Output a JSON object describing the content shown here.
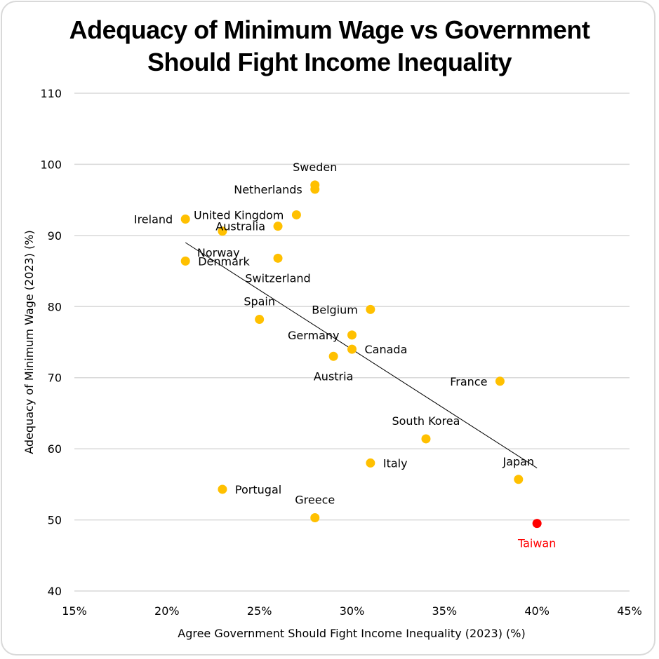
{
  "chart_data": {
    "type": "scatter",
    "title_lines": [
      "Adequacy of Minimum Wage vs Government",
      "Should Fight Income Inequality"
    ],
    "xlabel": "Agree Government Should Fight Income Inequality (2023) (%)",
    "ylabel": "Adequacy of Minimum Wage (2023) (%)",
    "xlim": [
      15,
      45
    ],
    "ylim": [
      40,
      110
    ],
    "xticks": [
      15,
      20,
      25,
      30,
      35,
      40,
      45
    ],
    "xtick_labels": [
      "15%",
      "20%",
      "25%",
      "30%",
      "35%",
      "40%",
      "45%"
    ],
    "yticks": [
      40,
      50,
      60,
      70,
      80,
      90,
      100,
      110
    ],
    "ytick_labels": [
      "40",
      "50",
      "60",
      "70",
      "80",
      "90",
      "100",
      "110"
    ],
    "grid": "horizontal",
    "colors": {
      "default": "#FFC000",
      "highlight": "#FF0000",
      "grid": "#d9d9d9",
      "trend": "#000000"
    },
    "points": [
      {
        "name": "Sweden",
        "x": 28,
        "y": 97.1,
        "label_pos": "above"
      },
      {
        "name": "Netherlands",
        "x": 28,
        "y": 96.5,
        "label_pos": "left"
      },
      {
        "name": "Ireland",
        "x": 21,
        "y": 92.3,
        "label_pos": "left"
      },
      {
        "name": "United Kingdom",
        "x": 27,
        "y": 92.9,
        "label_pos": "left"
      },
      {
        "name": "Australia",
        "x": 26,
        "y": 91.3,
        "label_pos": "left"
      },
      {
        "name": "Norway",
        "x": 23,
        "y": 90.6,
        "label_pos": "below-right"
      },
      {
        "name": "Denmark",
        "x": 21,
        "y": 86.4,
        "label_pos": "right"
      },
      {
        "name": "Switzerland",
        "x": 26,
        "y": 86.8,
        "label_pos": "below"
      },
      {
        "name": "Belgium",
        "x": 31,
        "y": 79.6,
        "label_pos": "left"
      },
      {
        "name": "Spain",
        "x": 25,
        "y": 78.2,
        "label_pos": "above"
      },
      {
        "name": "Germany",
        "x": 30,
        "y": 76.0,
        "label_pos": "left"
      },
      {
        "name": "Canada",
        "x": 30,
        "y": 74.0,
        "label_pos": "right"
      },
      {
        "name": "Austria",
        "x": 29,
        "y": 73.0,
        "label_pos": "below"
      },
      {
        "name": "France",
        "x": 38,
        "y": 69.5,
        "label_pos": "left"
      },
      {
        "name": "South Korea",
        "x": 34,
        "y": 61.4,
        "label_pos": "above"
      },
      {
        "name": "Italy",
        "x": 31,
        "y": 58.0,
        "label_pos": "right"
      },
      {
        "name": "Japan",
        "x": 39,
        "y": 55.7,
        "label_pos": "above"
      },
      {
        "name": "Portugal",
        "x": 23,
        "y": 54.3,
        "label_pos": "right"
      },
      {
        "name": "Greece",
        "x": 28,
        "y": 50.3,
        "label_pos": "above"
      },
      {
        "name": "Taiwan",
        "x": 40,
        "y": 49.5,
        "label_pos": "below",
        "highlight": true
      }
    ],
    "trendline": {
      "type": "linear",
      "x_start": 21,
      "y_start": 89.0,
      "x_end": 40,
      "y_end": 57.3
    }
  }
}
